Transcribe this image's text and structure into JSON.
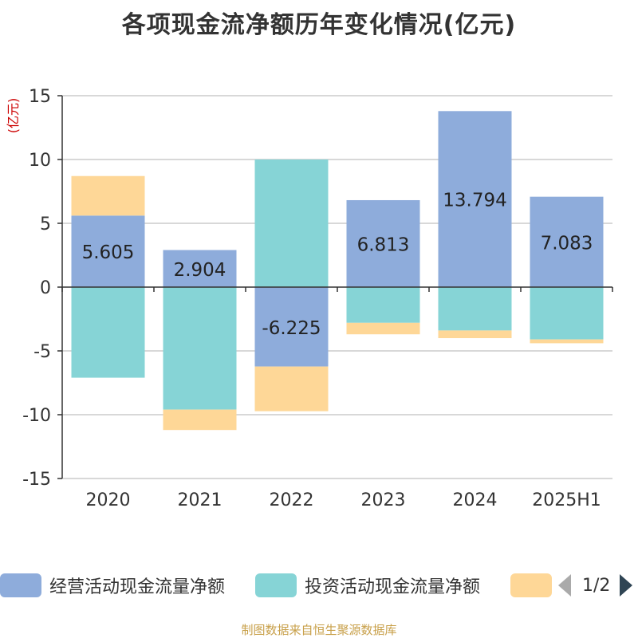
{
  "colors": {
    "operating": "#8eacdb",
    "investing": "#86d4d6",
    "financing": "#fed797",
    "axis": "#333333",
    "grid": "#cccccc",
    "unit": "#cc0000"
  },
  "legend": {
    "items": [
      {
        "label": "经营活动现金流量净额",
        "color": "#8eacdb"
      },
      {
        "label": "投资活动现金流量净额",
        "color": "#86d4d6"
      },
      {
        "label": "",
        "color": "#fed797"
      }
    ],
    "page_indicator": "1/2"
  },
  "source": "制图数据来自恒生聚源数据库",
  "chart_data": {
    "type": "bar",
    "stacked": true,
    "title": "各项现金流净额历年变化情况(亿元)",
    "ylabel": "(亿元)",
    "xlabel": "",
    "categories": [
      "2020",
      "2021",
      "2022",
      "2023",
      "2024",
      "2025H1"
    ],
    "ylim": [
      -15,
      15
    ],
    "yticks": [
      15,
      10,
      5,
      0,
      -5,
      -10,
      -15
    ],
    "ytick_labels": [
      "15",
      "10",
      "5",
      "0",
      "-5",
      "-10",
      "-15"
    ],
    "grid": true,
    "legend_position": "bottom",
    "series": [
      {
        "name": "经营活动现金流量净额",
        "values": [
          5.605,
          2.904,
          -6.225,
          6.813,
          13.794,
          7.083
        ],
        "color": "#8eacdb",
        "show_labels": true
      },
      {
        "name": "投资活动现金流量净额",
        "values": [
          -7.1,
          -9.6,
          10.0,
          -2.8,
          -3.4,
          -4.1
        ],
        "color": "#86d4d6",
        "show_labels": false
      },
      {
        "values": [
          3.1,
          -1.6,
          -3.5,
          -0.9,
          -0.6,
          -0.3
        ],
        "color": "#fed797",
        "show_labels": false
      }
    ],
    "data_labels": [
      "5.605",
      "2.904",
      "-6.225",
      "6.813",
      "13.794",
      "7.083"
    ]
  }
}
